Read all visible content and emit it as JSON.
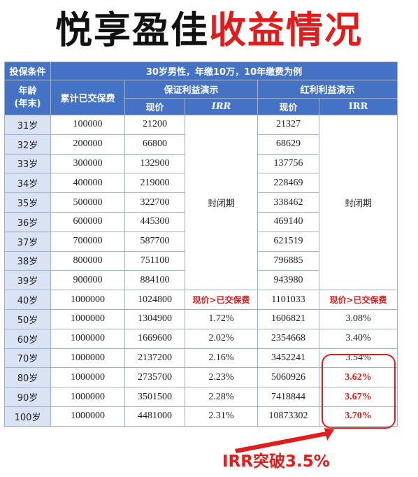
{
  "title": {
    "part1": "悦享盈佳",
    "part2": "收益情况"
  },
  "table": {
    "condition_label": "投保条件",
    "condition_value": "30岁男性，年缴10万，10年缴费为例",
    "col_age": "年龄\n(年末)",
    "col_paid": "累计已交保费",
    "group_guaranteed": "保证利益演示",
    "group_bonus": "红利利益演示",
    "sub_value": "现价",
    "sub_irr_italic": "IRR",
    "sub_irr": "IRR",
    "closed_period": "封闭期",
    "breakeven_text": "现价>已交保费",
    "rows": [
      {
        "age": "31岁",
        "paid": "100000",
        "g_value": "21200",
        "g_irr": "",
        "b_value": "21327",
        "b_irr": ""
      },
      {
        "age": "32岁",
        "paid": "200000",
        "g_value": "66800",
        "g_irr": "",
        "b_value": "68629",
        "b_irr": ""
      },
      {
        "age": "33岁",
        "paid": "300000",
        "g_value": "132900",
        "g_irr": "",
        "b_value": "137756",
        "b_irr": ""
      },
      {
        "age": "34岁",
        "paid": "400000",
        "g_value": "219000",
        "g_irr": "",
        "b_value": "228469",
        "b_irr": ""
      },
      {
        "age": "35岁",
        "paid": "500000",
        "g_value": "322700",
        "g_irr": "",
        "b_value": "338462",
        "b_irr": ""
      },
      {
        "age": "36岁",
        "paid": "600000",
        "g_value": "445300",
        "g_irr": "",
        "b_value": "469140",
        "b_irr": ""
      },
      {
        "age": "37岁",
        "paid": "700000",
        "g_value": "587700",
        "g_irr": "",
        "b_value": "621519",
        "b_irr": ""
      },
      {
        "age": "38岁",
        "paid": "800000",
        "g_value": "751100",
        "g_irr": "",
        "b_value": "796885",
        "b_irr": ""
      },
      {
        "age": "39岁",
        "paid": "900000",
        "g_value": "884100",
        "g_irr": "",
        "b_value": "943980",
        "b_irr": ""
      },
      {
        "age": "40岁",
        "paid": "1000000",
        "g_value": "1024800",
        "g_irr": "",
        "b_value": "1101033",
        "b_irr": ""
      },
      {
        "age": "50岁",
        "paid": "1000000",
        "g_value": "1304900",
        "g_irr": "1.72%",
        "b_value": "1606821",
        "b_irr": "3.08%"
      },
      {
        "age": "60岁",
        "paid": "1000000",
        "g_value": "1669600",
        "g_irr": "2.02%",
        "b_value": "2354668",
        "b_irr": "3.40%"
      },
      {
        "age": "70岁",
        "paid": "1000000",
        "g_value": "2137200",
        "g_irr": "2.16%",
        "b_value": "3452241",
        "b_irr": "3.54%"
      },
      {
        "age": "80岁",
        "paid": "1000000",
        "g_value": "2735700",
        "g_irr": "2.23%",
        "b_value": "5060926",
        "b_irr": "3.62%"
      },
      {
        "age": "90岁",
        "paid": "1000000",
        "g_value": "3501500",
        "g_irr": "2.28%",
        "b_value": "7418844",
        "b_irr": "3.67%"
      },
      {
        "age": "100岁",
        "paid": "1000000",
        "g_value": "4481000",
        "g_irr": "2.31%",
        "b_value": "10873302",
        "b_irr": "3.70%"
      }
    ]
  },
  "annotation": {
    "text": "IRR突破3.5%"
  },
  "colors": {
    "header_blue": "#4472c4",
    "age_cell": "#dae3f3",
    "accent_red": "#e21b1b"
  }
}
